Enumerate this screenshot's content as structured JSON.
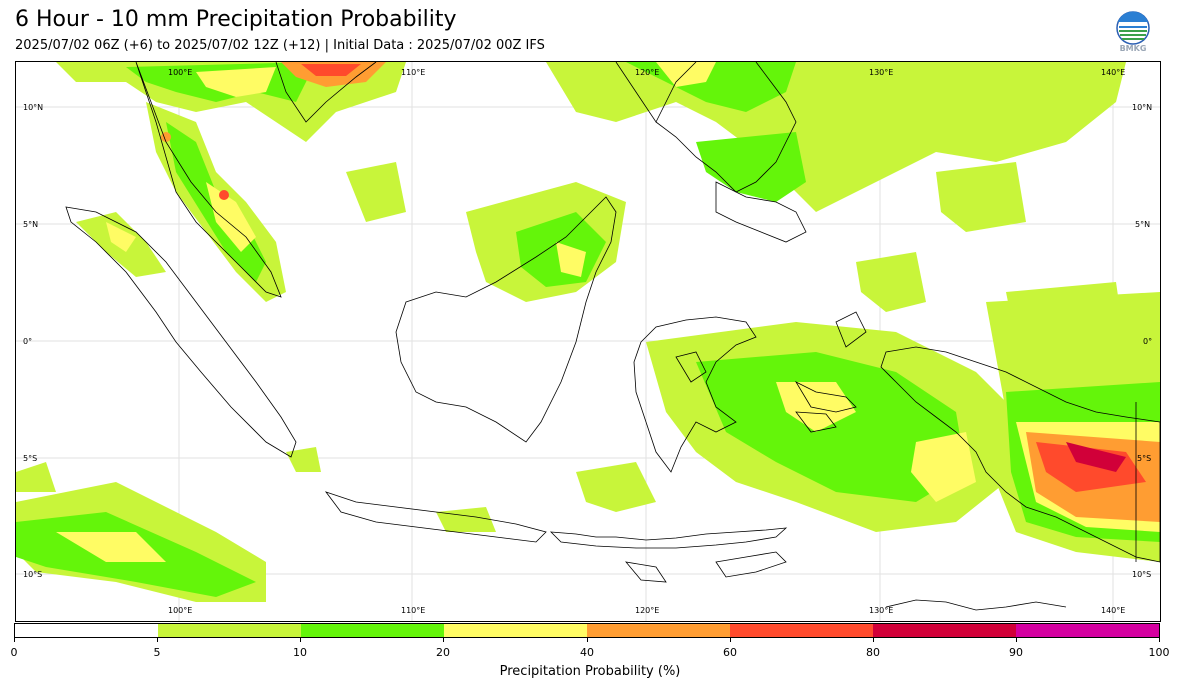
{
  "title": "6 Hour - 10 mm Precipitation Probability",
  "subtitle": "2025/07/02 06Z (+6) to 2025/07/02 12Z (+12) | Initial Data : 2025/07/02 00Z IFS",
  "logo_text": "BMKG",
  "map": {
    "lon_labels": [
      "100°E",
      "110°E",
      "120°E",
      "130°E",
      "140°E"
    ],
    "lat_labels": [
      "10°N",
      "5°N",
      "0°",
      "5°S",
      "10°S"
    ]
  },
  "colorbar": {
    "label": "Precipitation Probability (%)",
    "ticks": [
      "0",
      "5",
      "10",
      "20",
      "40",
      "60",
      "80",
      "90",
      "100"
    ],
    "colors": [
      "#ffffff",
      "#c8f53a",
      "#64f50a",
      "#fffc64",
      "#ff9d32",
      "#ff4a2c",
      "#d10039",
      "#d400a0"
    ]
  }
}
